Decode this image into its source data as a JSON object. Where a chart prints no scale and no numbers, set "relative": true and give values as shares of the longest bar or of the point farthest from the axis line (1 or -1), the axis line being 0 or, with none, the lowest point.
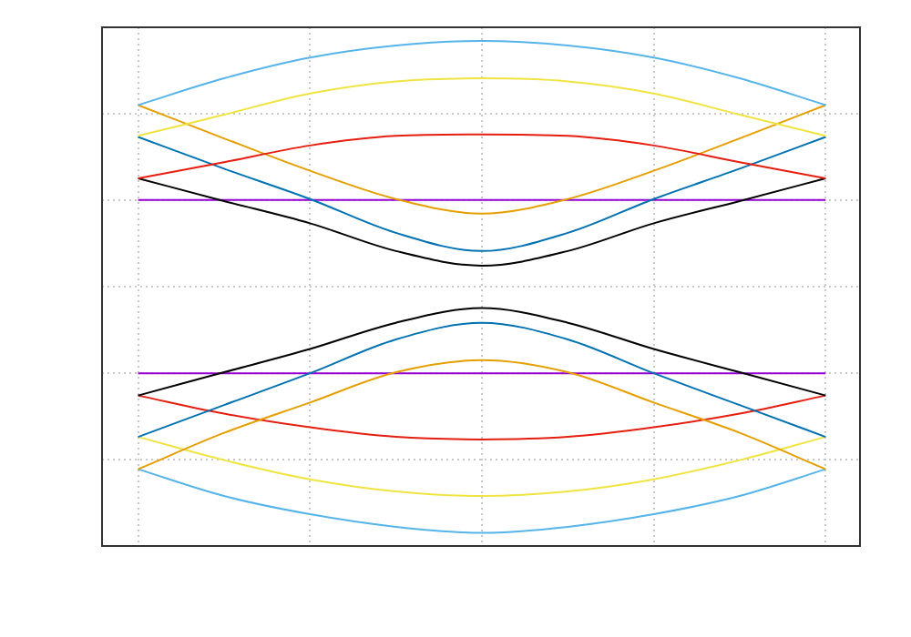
{
  "chart_data": {
    "type": "line",
    "relative": true,
    "grid": true,
    "legend": false,
    "tick_labels": false,
    "marker": "none",
    "line_style": "solid",
    "categories": [
      null,
      null,
      null,
      null,
      null,
      null,
      null,
      null,
      null
    ],
    "series": [
      {
        "color": "#56b4e9",
        "values": [
          0.873,
          0.926,
          0.967,
          0.991,
          1,
          0.991,
          0.967,
          0.926,
          0.873
        ]
      },
      {
        "color": "#f0e442",
        "values": [
          0.812,
          0.854,
          0.896,
          0.92,
          0.926,
          0.92,
          0.896,
          0.854,
          0.812
        ]
      },
      {
        "color": "#e51e10",
        "values": [
          0.728,
          0.76,
          0.793,
          0.812,
          0.815,
          0.812,
          0.793,
          0.76,
          0.728
        ]
      },
      {
        "color": "#e69f00",
        "values": [
          0.873,
          0.807,
          0.743,
          0.687,
          0.658,
          0.687,
          0.743,
          0.807,
          0.873
        ]
      },
      {
        "color": "#0072b2",
        "values": [
          0.81,
          0.747,
          0.687,
          0.62,
          0.584,
          0.62,
          0.687,
          0.747,
          0.81
        ]
      },
      {
        "color": "#000000",
        "values": [
          0.728,
          0.683,
          0.639,
          0.584,
          0.555,
          0.584,
          0.639,
          0.683,
          0.728
        ]
      },
      {
        "color": "#9400d3",
        "values": [
          0.685,
          0.685,
          0.685,
          0.685,
          0.685,
          0.685,
          0.685,
          0.685,
          0.685
        ]
      },
      {
        "color": "#000000",
        "values": [
          0.298,
          0.344,
          0.39,
          0.442,
          0.471,
          0.442,
          0.39,
          0.344,
          0.298
        ]
      },
      {
        "color": "#0072b2",
        "values": [
          0.216,
          0.279,
          0.342,
          0.409,
          0.442,
          0.409,
          0.342,
          0.279,
          0.216
        ]
      },
      {
        "color": "#e69f00",
        "values": [
          0.152,
          0.224,
          0.284,
          0.344,
          0.368,
          0.344,
          0.284,
          0.224,
          0.152
        ]
      },
      {
        "color": "#9400d3",
        "values": [
          0.342,
          0.342,
          0.342,
          0.342,
          0.342,
          0.342,
          0.342,
          0.342,
          0.342
        ]
      },
      {
        "color": "#e51e10",
        "values": [
          0.298,
          0.262,
          0.235,
          0.216,
          0.211,
          0.216,
          0.235,
          0.262,
          0.298
        ]
      },
      {
        "color": "#f0e442",
        "values": [
          0.216,
          0.17,
          0.132,
          0.108,
          0.099,
          0.108,
          0.132,
          0.17,
          0.216
        ]
      },
      {
        "color": "#56b4e9",
        "values": [
          0.152,
          0.099,
          0.063,
          0.038,
          0.026,
          0.038,
          0.063,
          0.099,
          0.152
        ]
      }
    ]
  }
}
